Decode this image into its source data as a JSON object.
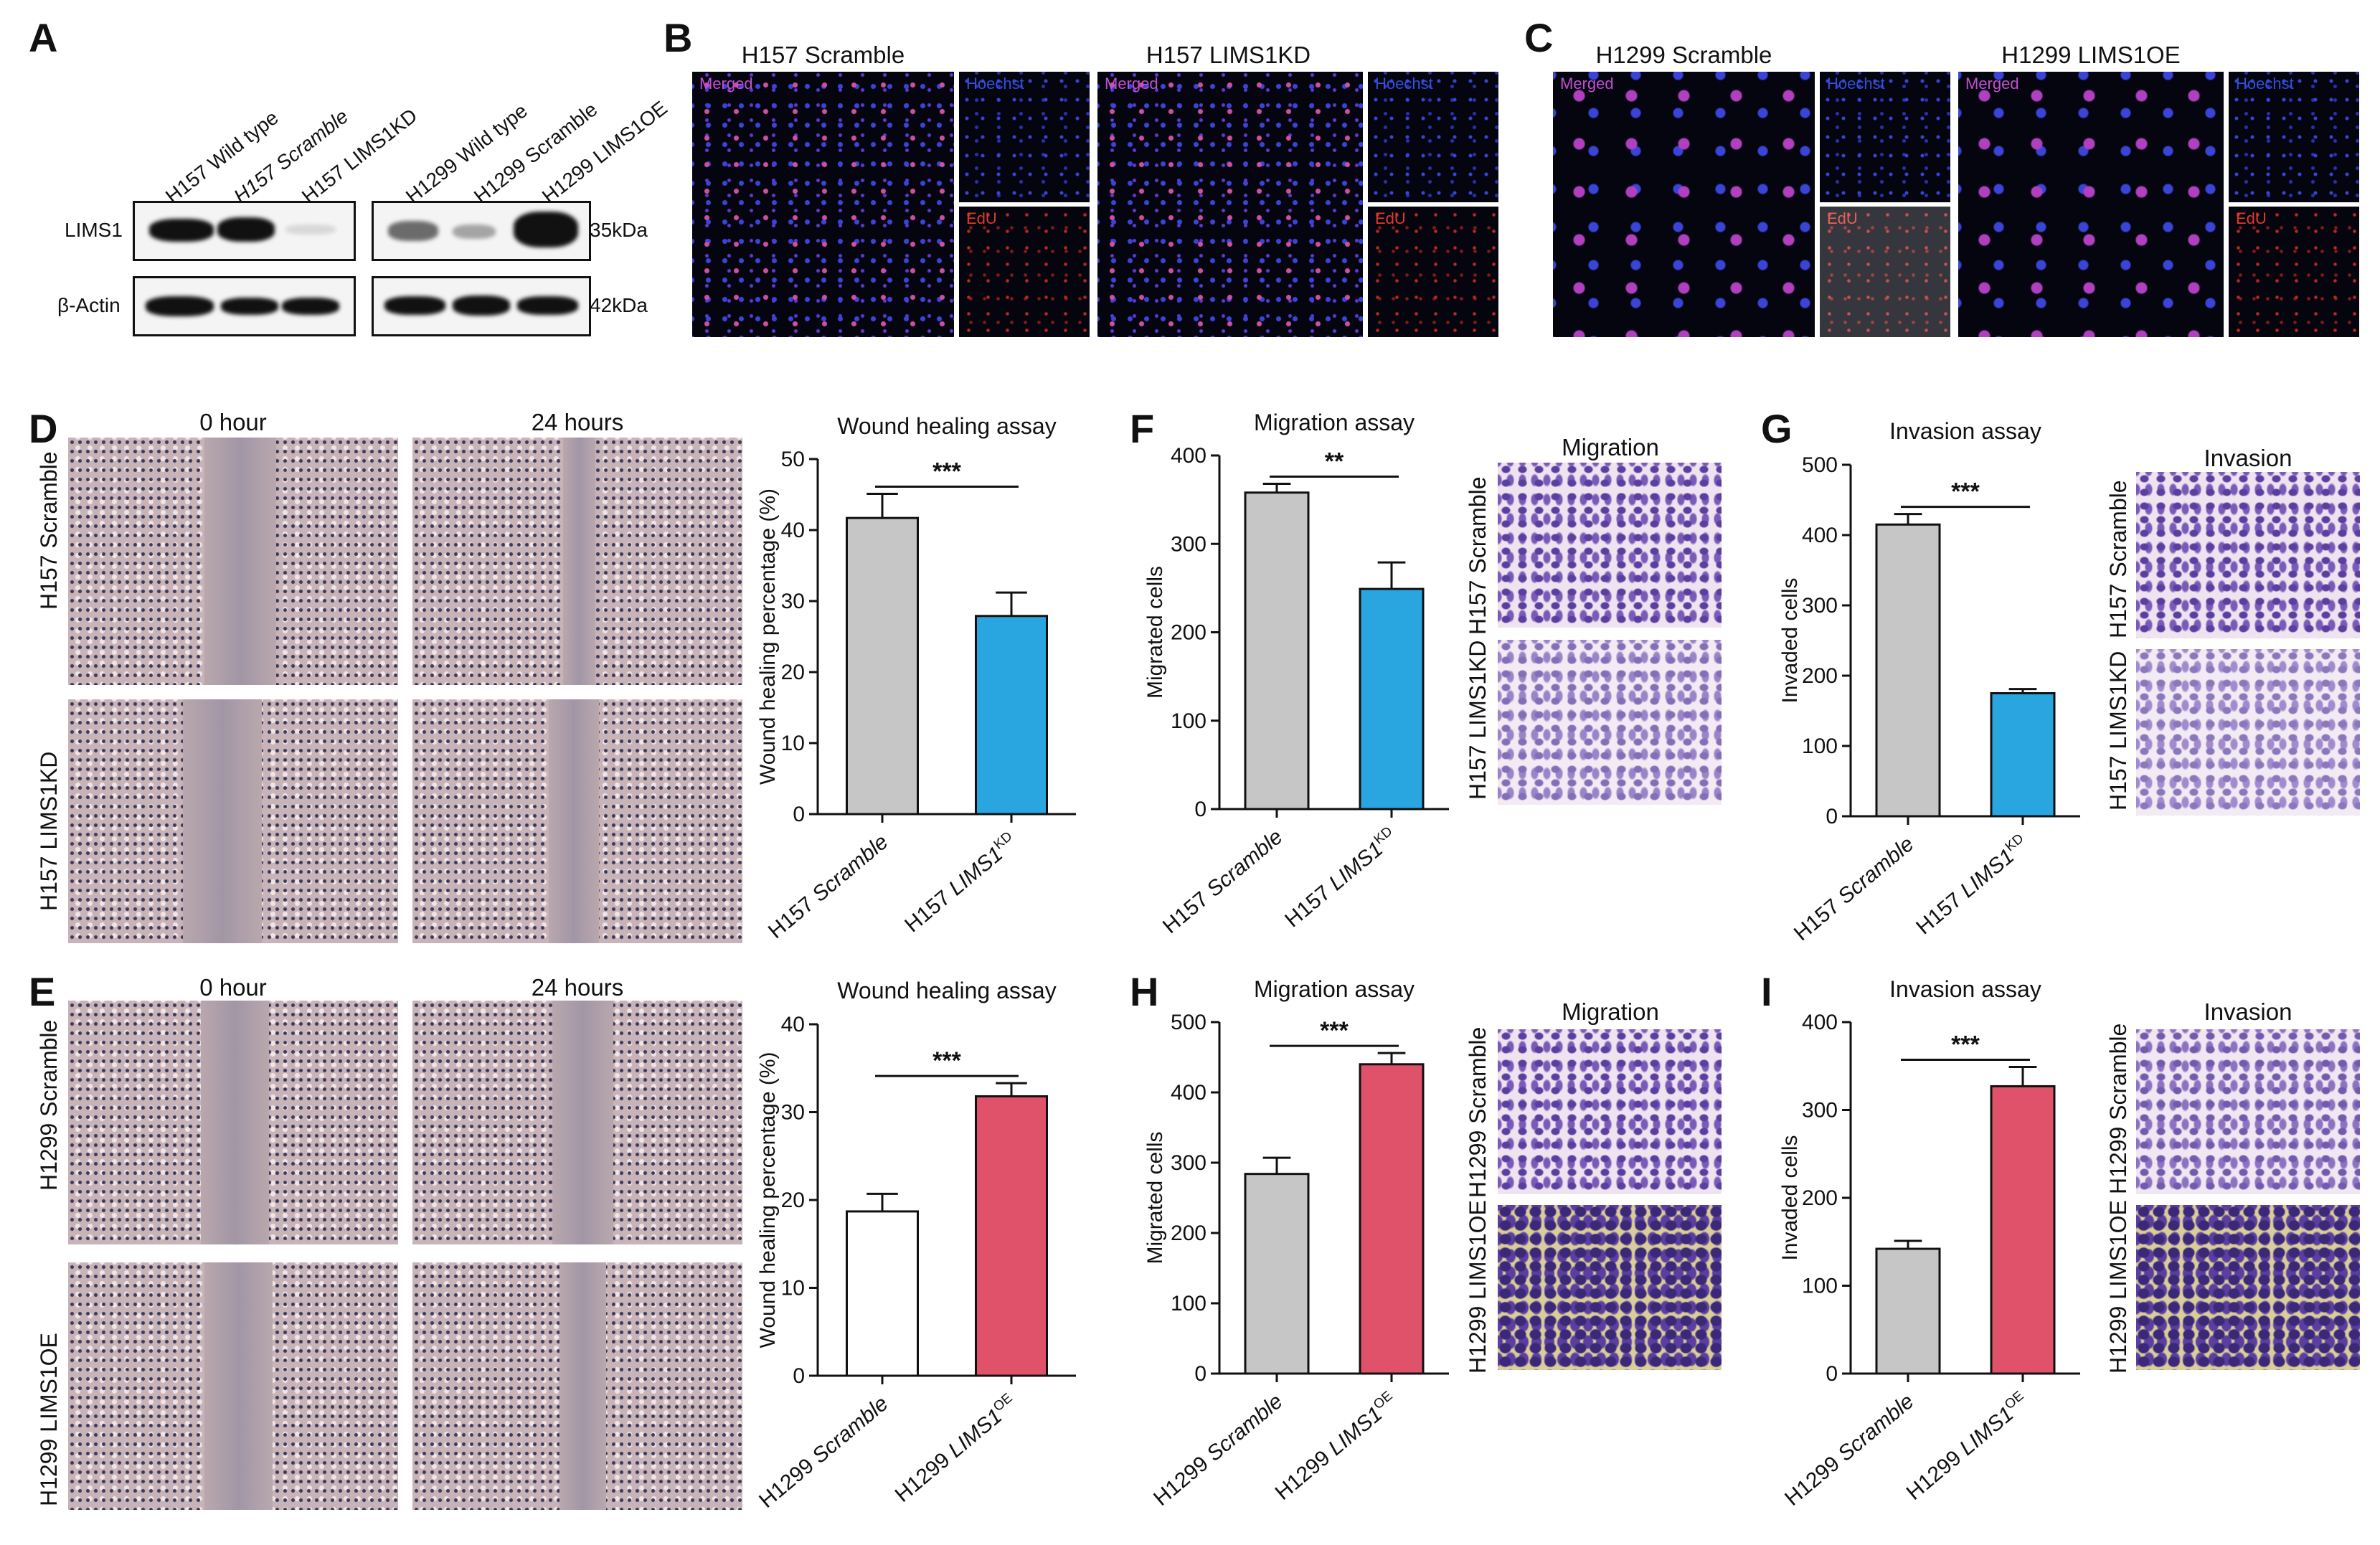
{
  "panel_letters": {
    "a": "A",
    "b": "B",
    "c": "C",
    "d": "D",
    "e": "E",
    "f": "F",
    "g": "G",
    "h": "H",
    "i": "I"
  },
  "panel_a": {
    "lanes_left": [
      "H157 Wild type",
      "H157 Scramble",
      "H157 LIMS1KD"
    ],
    "lanes_right": [
      "H1299 Wild type",
      "H1299 Scramble",
      "H1299 LIMS1OE"
    ],
    "row_labels": [
      "LIMS1",
      "β-Actin"
    ],
    "size_labels": [
      "35kDa",
      "42kDa"
    ]
  },
  "panel_b": {
    "title_left": "H157 Scramble",
    "title_right": "H157 LIMS1KD",
    "merged": "Merged",
    "hoechst": "Hoechst",
    "edu": "EdU"
  },
  "panel_c": {
    "title_left": "H1299 Scramble",
    "title_right": "H1299 LIMS1OE",
    "merged": "Merged",
    "hoechst": "Hoechst",
    "edu": "EdU"
  },
  "panel_d": {
    "col0": "0 hour",
    "col24": "24 hours",
    "row1": "H157 Scramble",
    "row2": "H157 LIMS1KD"
  },
  "panel_e": {
    "col0": "0 hour",
    "col24": "24 hours",
    "row1": "H1299 Scramble",
    "row2": "H1299 LIMS1OE"
  },
  "panel_f_images": {
    "title": "Migration",
    "row1": "H157 Scramble",
    "row2": "H157 LIMS1KD"
  },
  "panel_g_images": {
    "title": "Invasion",
    "row1": "H157 Scramble",
    "row2": "H157 LIMS1KD"
  },
  "panel_h_images": {
    "title": "Migration",
    "row1": "H1299 Scramble",
    "row2": "H1299 LIMS1OE"
  },
  "panel_i_images": {
    "title": "Invasion",
    "row1": "H1299 Scramble",
    "row2": "H1299 LIMS1OE"
  },
  "chart_data": [
    {
      "id": "D",
      "type": "bar",
      "title": "Wound healing assay",
      "ylabel": "Wound healing percentage (%)",
      "ylim": [
        0,
        50
      ],
      "yticks": [
        0,
        10,
        20,
        30,
        40,
        50
      ],
      "categories": [
        "H157 Scramble",
        "H157 LIMS1KD"
      ],
      "values": [
        41.7,
        27.9
      ],
      "errors": [
        3.4,
        3.3
      ],
      "colors": [
        "#c6c6c6",
        "#29a6e0"
      ],
      "significance": "***"
    },
    {
      "id": "E",
      "type": "bar",
      "title": "Wound healing assay",
      "ylabel": "Wound healing percentage (%)",
      "ylim": [
        0,
        40
      ],
      "yticks": [
        0,
        10,
        20,
        30,
        40
      ],
      "categories": [
        "H1299 Scramble",
        "H1299 LIMS1OE"
      ],
      "values": [
        18.7,
        31.8
      ],
      "errors": [
        2.0,
        1.5
      ],
      "colors": [
        "#ffffff",
        "#e0516a"
      ],
      "significance": "***"
    },
    {
      "id": "F",
      "type": "bar",
      "title": "Migration assay",
      "ylabel": "Migrated cells",
      "ylim": [
        0,
        400
      ],
      "yticks": [
        0,
        100,
        200,
        300,
        400
      ],
      "categories": [
        "H157 Scramble",
        "H157 LIMS1KD"
      ],
      "values": [
        358,
        249
      ],
      "errors": [
        10,
        30
      ],
      "colors": [
        "#c6c6c6",
        "#29a6e0"
      ],
      "significance": "**"
    },
    {
      "id": "G",
      "type": "bar",
      "title": "Invasion assay",
      "ylabel": "Invaded cells",
      "ylim": [
        0,
        500
      ],
      "yticks": [
        0,
        100,
        200,
        300,
        400,
        500
      ],
      "categories": [
        "H157 Scramble",
        "H157 LIMS1KD"
      ],
      "values": [
        415,
        175
      ],
      "errors": [
        15,
        6
      ],
      "colors": [
        "#c6c6c6",
        "#29a6e0"
      ],
      "significance": "***"
    },
    {
      "id": "H",
      "type": "bar",
      "title": "Migration assay",
      "ylabel": "Migrated cells",
      "ylim": [
        0,
        500
      ],
      "yticks": [
        0,
        100,
        200,
        300,
        400,
        500
      ],
      "categories": [
        "H1299 Scramble",
        "H1299 LIMS1OE"
      ],
      "values": [
        284,
        440
      ],
      "errors": [
        23,
        16
      ],
      "colors": [
        "#c6c6c6",
        "#e0516a"
      ],
      "significance": "***"
    },
    {
      "id": "I",
      "type": "bar",
      "title": "Invasion assay",
      "ylabel": "Invaded cells",
      "ylim": [
        0,
        400
      ],
      "yticks": [
        0,
        100,
        200,
        300,
        400
      ],
      "categories": [
        "H1299 Scramble",
        "H1299 LIMS1OE"
      ],
      "values": [
        142,
        327
      ],
      "errors": [
        9,
        22
      ],
      "colors": [
        "#c6c6c6",
        "#e0516a"
      ],
      "significance": "***"
    }
  ]
}
